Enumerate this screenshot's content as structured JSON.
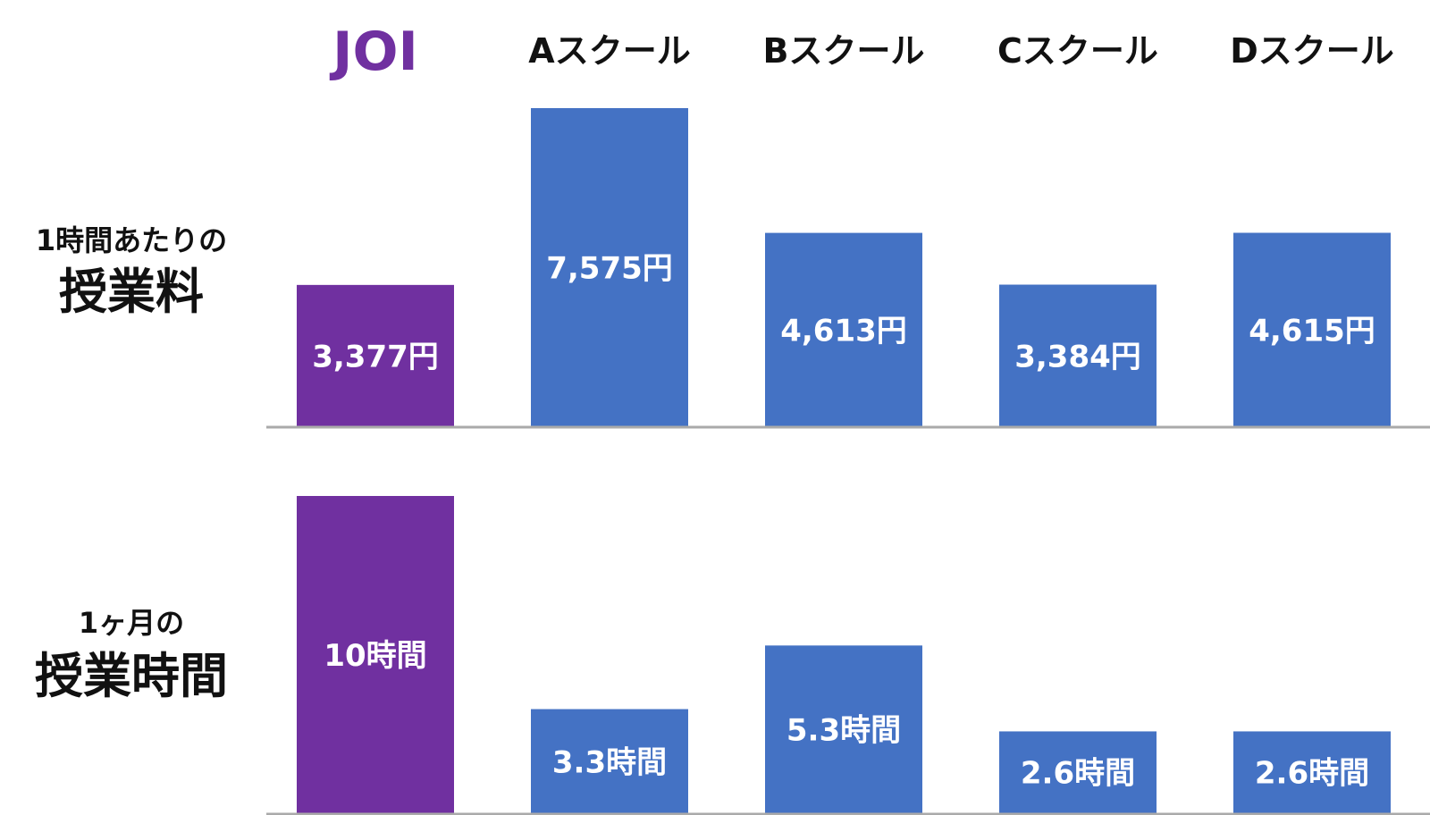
{
  "chart_data": {
    "type": "bar",
    "categories": [
      "JOI",
      "Aスクール",
      "Bスクール",
      "Cスクール",
      "Dスクール"
    ],
    "highlight_category": "JOI",
    "colors": {
      "highlight": "#7030A0",
      "bar": "#4472C4",
      "axis": "#AAAAAA"
    },
    "grid": false,
    "legend": "none",
    "panels": [
      {
        "label_line1": "1時間あたりの",
        "label_line2": "授業料",
        "values": [
          3377,
          7575,
          4613,
          3384,
          4615
        ],
        "value_labels": [
          "3,377円",
          "7,575円",
          "4,613円",
          "3,384円",
          "4,615円"
        ],
        "ylim": [
          0,
          7575
        ]
      },
      {
        "label_line1": "1ヶ月の",
        "label_line2": "授業時間",
        "values": [
          10,
          3.3,
          5.3,
          2.6,
          2.6
        ],
        "value_labels": [
          "10時間",
          "3.3時間",
          "5.3時間",
          "2.6時間",
          "2.6時間"
        ],
        "ylim": [
          0,
          10
        ]
      }
    ]
  }
}
